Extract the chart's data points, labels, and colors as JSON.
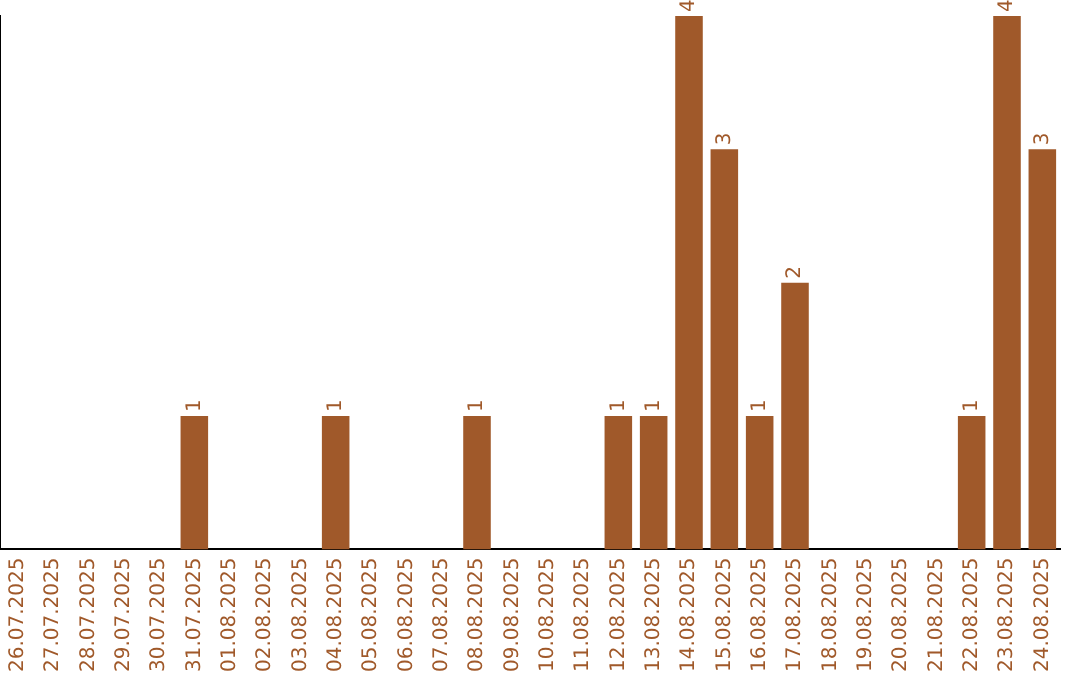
{
  "chart_data": {
    "type": "bar",
    "categories": [
      "26.07.2025",
      "27.07.2025",
      "28.07.2025",
      "29.07.2025",
      "30.07.2025",
      "31.07.2025",
      "01.08.2025",
      "02.08.2025",
      "03.08.2025",
      "04.08.2025",
      "05.08.2025",
      "06.08.2025",
      "07.08.2025",
      "08.08.2025",
      "09.08.2025",
      "10.08.2025",
      "11.08.2025",
      "12.08.2025",
      "13.08.2025",
      "14.08.2025",
      "15.08.2025",
      "16.08.2025",
      "17.08.2025",
      "18.08.2025",
      "19.08.2025",
      "20.08.2025",
      "21.08.2025",
      "22.08.2025",
      "23.08.2025",
      "24.08.2025"
    ],
    "values": [
      0,
      0,
      0,
      0,
      0,
      1,
      0,
      0,
      0,
      1,
      0,
      0,
      0,
      1,
      0,
      0,
      0,
      1,
      1,
      4,
      3,
      1,
      2,
      0,
      0,
      0,
      0,
      1,
      4,
      3
    ],
    "value_labels": [
      null,
      null,
      null,
      null,
      null,
      "1",
      null,
      null,
      null,
      "1",
      null,
      null,
      null,
      "1",
      null,
      null,
      null,
      "1",
      "1",
      "4",
      "3",
      "1",
      "2",
      null,
      null,
      null,
      null,
      "1",
      "4",
      "3"
    ],
    "color": "#a0592a",
    "ylim": [
      0,
      4
    ],
    "tick_labels": "x",
    "grid": false,
    "legend": false
  }
}
